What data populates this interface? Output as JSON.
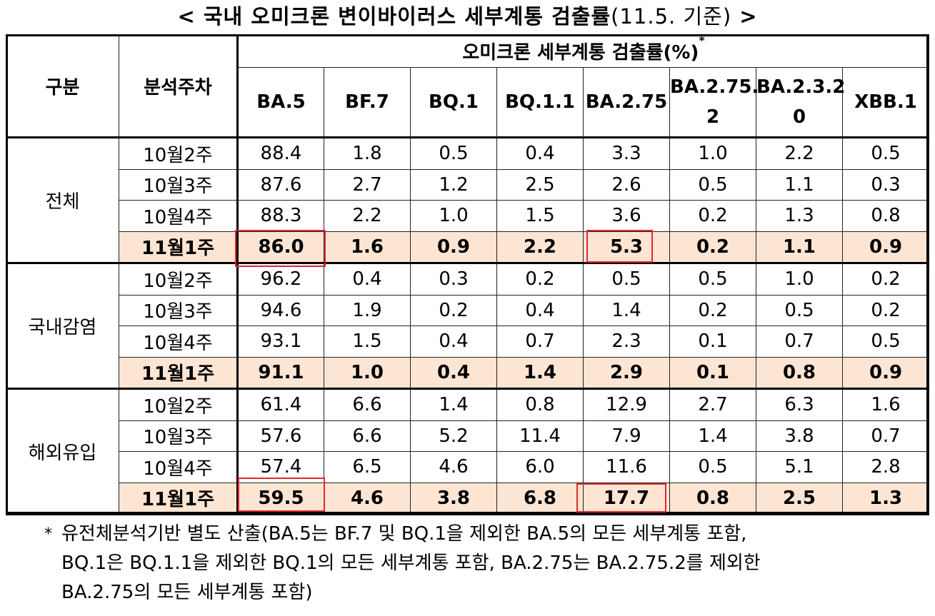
{
  "title": {
    "main": "< 국내 오미크론 변이바이러스 세부계통 검출률",
    "sub": "(11.5. 기준)",
    "end": " >"
  },
  "table": {
    "col_group": "구분",
    "col_week": "분석주차",
    "col_rate": "오미크론 세부계통 검출률(%)",
    "col_rate_mark": "*",
    "variants": [
      "BA.5",
      "BF.7",
      "BQ.1",
      "BQ.1.1",
      "BA.2.75",
      "BA.2.75.2",
      "BA.2.3.20",
      "XBB.1"
    ],
    "variant_lines": [
      [
        "BA.5"
      ],
      [
        "BF.7"
      ],
      [
        "BQ.1"
      ],
      [
        "BQ.1.1"
      ],
      [
        "BA.2.75"
      ],
      [
        "BA.2.75.",
        "2"
      ],
      [
        "BA.2.3.2",
        "0"
      ],
      [
        "XBB.1"
      ]
    ],
    "groups": [
      {
        "name": "전체",
        "rows": [
          {
            "week": "10월2주",
            "values": [
              "88.4",
              "1.8",
              "0.5",
              "0.4",
              "3.3",
              "1.0",
              "2.2",
              "0.5"
            ]
          },
          {
            "week": "10월3주",
            "values": [
              "87.6",
              "2.7",
              "1.2",
              "2.5",
              "2.6",
              "0.5",
              "1.1",
              "0.3"
            ]
          },
          {
            "week": "10월4주",
            "values": [
              "88.3",
              "2.2",
              "1.0",
              "1.5",
              "3.6",
              "0.2",
              "1.3",
              "0.8"
            ]
          },
          {
            "week": "11월1주",
            "values": [
              "86.0",
              "1.6",
              "0.9",
              "2.2",
              "5.3",
              "0.2",
              "1.1",
              "0.9"
            ],
            "highlight": true
          }
        ]
      },
      {
        "name": "국내감염",
        "rows": [
          {
            "week": "10월2주",
            "values": [
              "96.2",
              "0.4",
              "0.3",
              "0.2",
              "0.5",
              "0.5",
              "1.0",
              "0.2"
            ]
          },
          {
            "week": "10월3주",
            "values": [
              "94.6",
              "1.9",
              "0.2",
              "0.4",
              "1.4",
              "0.2",
              "0.5",
              "0.2"
            ]
          },
          {
            "week": "10월4주",
            "values": [
              "93.1",
              "1.5",
              "0.4",
              "0.7",
              "2.3",
              "0.1",
              "0.7",
              "0.5"
            ]
          },
          {
            "week": "11월1주",
            "values": [
              "91.1",
              "1.0",
              "0.4",
              "1.4",
              "2.9",
              "0.1",
              "0.8",
              "0.9"
            ],
            "highlight": true
          }
        ]
      },
      {
        "name": "해외유입",
        "rows": [
          {
            "week": "10월2주",
            "values": [
              "61.4",
              "6.6",
              "1.4",
              "0.8",
              "12.9",
              "2.7",
              "6.3",
              "1.6"
            ]
          },
          {
            "week": "10월3주",
            "values": [
              "57.6",
              "6.6",
              "5.2",
              "11.4",
              "7.9",
              "1.4",
              "3.8",
              "0.7"
            ]
          },
          {
            "week": "10월4주",
            "values": [
              "57.4",
              "6.5",
              "4.6",
              "6.0",
              "11.6",
              "0.5",
              "5.1",
              "2.8"
            ]
          },
          {
            "week": "11월1주",
            "values": [
              "59.5",
              "4.6",
              "3.8",
              "6.8",
              "17.7",
              "0.8",
              "2.5",
              "1.3"
            ],
            "highlight": true
          }
        ]
      }
    ],
    "highlight_color": "#fde5d4",
    "box_color": "#e0282b"
  },
  "footnote": {
    "marker": "*",
    "lines": [
      "유전체분석기반 별도 산출(BA.5는 BF.7 및 BQ.1을 제외한 BA.5의 모든 세부계통 포함,",
      "BQ.1은 BQ.1.1을 제외한 BQ.1의 모든 세부계통 포함, BA.2.75는 BA.2.75.2를 제외한",
      "BA.2.75의 모든 세부계통 포함)"
    ]
  }
}
